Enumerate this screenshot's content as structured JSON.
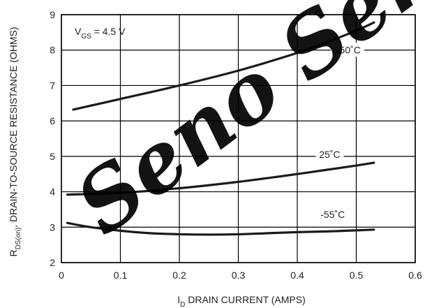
{
  "chart_data": {
    "type": "line",
    "xlabel": {
      "main": "I",
      "sub": "D",
      "rest": " DRAIN CURRENT (AMPS)"
    },
    "ylabel": {
      "main": "R",
      "sub": "DS(on)",
      "rest": ", DRAIN-TO-SOURCE RESISTANCE (OHMS)"
    },
    "xlim": [
      0,
      0.6
    ],
    "ylim": [
      2,
      9
    ],
    "x_ticks": [
      0,
      0.1,
      0.2,
      0.3,
      0.4,
      0.5,
      0.6
    ],
    "x_tick_labels": [
      "0",
      "0.1",
      "0.2",
      "0.3",
      "0.4",
      "0.5",
      "0.6"
    ],
    "y_ticks": [
      2,
      3,
      4,
      5,
      6,
      7,
      8,
      9
    ],
    "y_tick_labels": [
      "2",
      "3",
      "4",
      "5",
      "6",
      "7",
      "8",
      "9"
    ],
    "grid": true,
    "condition": {
      "main": "V",
      "sub": "GS",
      "rest": " = 4.5  V"
    },
    "series": [
      {
        "name": "150˚C",
        "x": [
          0.02,
          0.1,
          0.2,
          0.3,
          0.4,
          0.45,
          0.5,
          0.53
        ],
        "y": [
          6.32,
          6.62,
          7.0,
          7.42,
          7.92,
          8.22,
          8.55,
          8.78
        ]
      },
      {
        "name": "25˚C",
        "x": [
          0.01,
          0.1,
          0.2,
          0.3,
          0.4,
          0.45,
          0.5,
          0.53
        ],
        "y": [
          3.92,
          3.97,
          4.1,
          4.28,
          4.5,
          4.62,
          4.74,
          4.82
        ]
      },
      {
        "name": "-55˚C",
        "x": [
          0.01,
          0.05,
          0.1,
          0.15,
          0.2,
          0.25,
          0.3,
          0.35,
          0.4,
          0.45,
          0.5,
          0.53
        ],
        "y": [
          3.12,
          3.0,
          2.9,
          2.83,
          2.8,
          2.79,
          2.8,
          2.83,
          2.86,
          2.88,
          2.91,
          2.93
        ]
      }
    ],
    "colors": {
      "line": "#1a1a1a",
      "grid": "#000000"
    }
  },
  "watermark": {
    "text": "Seno Semi"
  }
}
